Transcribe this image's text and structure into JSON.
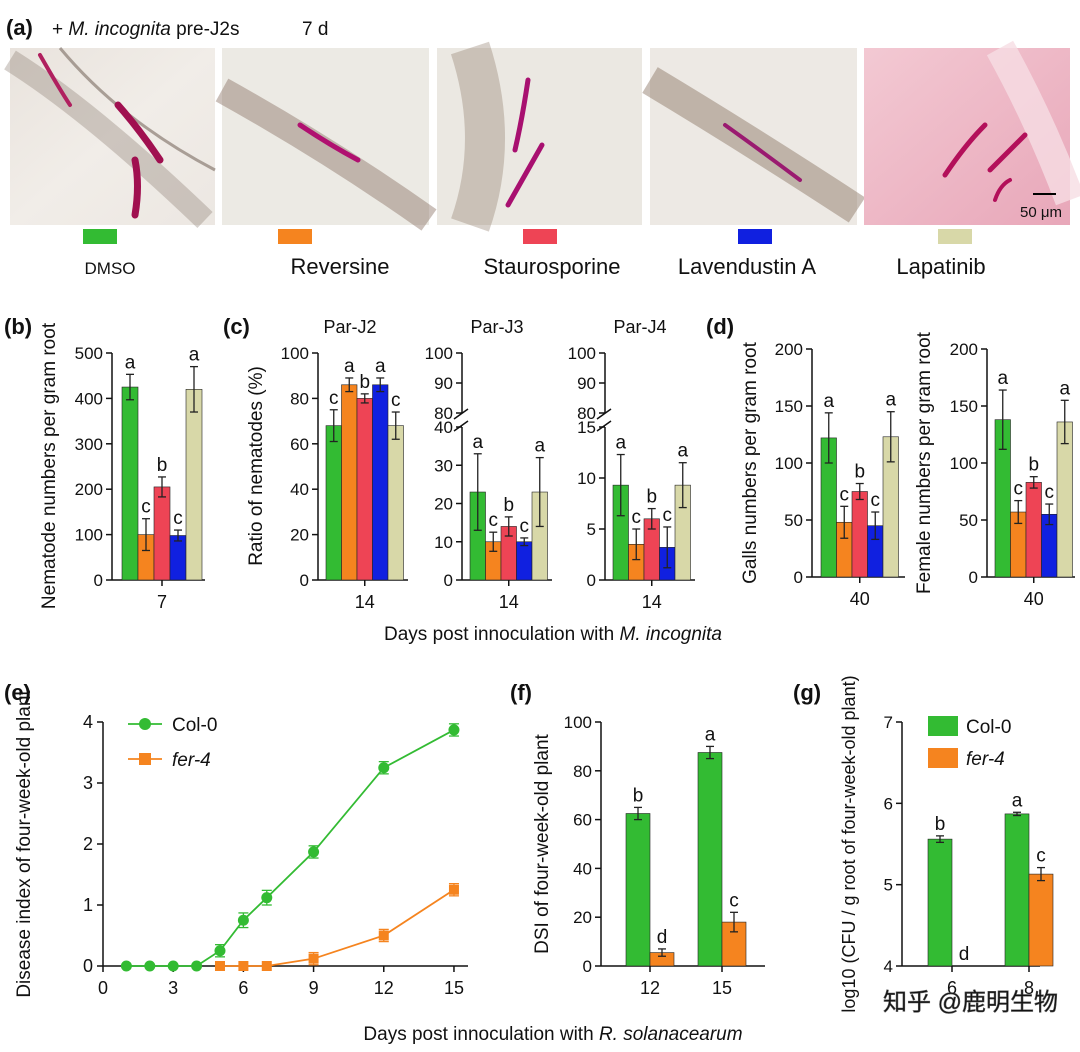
{
  "header": {
    "label": "(a)",
    "treatment_prefix": "+ ",
    "treatment_species": "M. incognita",
    "treatment_suffix": " pre-J2s",
    "timepoint": "7 d"
  },
  "scale_bar": "50 μm",
  "watermark": "知乎 @鹿明生物",
  "colors": {
    "DMSO": "#33bb33",
    "Reversine": "#f5841f",
    "Staurosporine": "#ee4455",
    "Lavendustin A": "#1020e0",
    "Lapatinib": "#d8d8a8",
    "Col-0": "#33bb33",
    "fer-4": "#f5841f"
  },
  "legend_a": [
    "DMSO",
    "Reversine",
    "Staurosporine",
    "Lavendustin A",
    "Lapatinib"
  ],
  "chart_data": [
    {
      "panel": "(b)",
      "type": "bar",
      "ylabel": "Nematode numbers per gram root",
      "categories": [
        "7"
      ],
      "ylim": [
        0,
        500
      ],
      "yticks": [
        0,
        100,
        200,
        300,
        400,
        500
      ],
      "series": [
        {
          "name": "DMSO",
          "values": [
            425
          ],
          "err": [
            28
          ],
          "letters": [
            "a"
          ]
        },
        {
          "name": "Reversine",
          "values": [
            100
          ],
          "err": [
            35
          ],
          "letters": [
            "c"
          ]
        },
        {
          "name": "Staurosporine",
          "values": [
            205
          ],
          "err": [
            22
          ],
          "letters": [
            "b"
          ]
        },
        {
          "name": "Lavendustin A",
          "values": [
            98
          ],
          "err": [
            12
          ],
          "letters": [
            "c"
          ]
        },
        {
          "name": "Lapatinib",
          "values": [
            420
          ],
          "err": [
            50
          ],
          "letters": [
            "a"
          ]
        }
      ]
    },
    {
      "panel": "(c)",
      "type": "bar",
      "title": "Par-J2",
      "ylabel": "Ratio of nematodes (%)",
      "categories": [
        "14"
      ],
      "ylim": [
        0,
        100
      ],
      "yticks": [
        0,
        20,
        40,
        60,
        80,
        100
      ],
      "series": [
        {
          "name": "DMSO",
          "values": [
            68
          ],
          "err": [
            7
          ],
          "letters": [
            "c"
          ]
        },
        {
          "name": "Reversine",
          "values": [
            86
          ],
          "err": [
            3
          ],
          "letters": [
            "a"
          ]
        },
        {
          "name": "Staurosporine",
          "values": [
            80
          ],
          "err": [
            2
          ],
          "letters": [
            "b"
          ]
        },
        {
          "name": "Lavendustin A",
          "values": [
            86
          ],
          "err": [
            3
          ],
          "letters": [
            "a"
          ]
        },
        {
          "name": "Lapatinib",
          "values": [
            68
          ],
          "err": [
            6
          ],
          "letters": [
            "c"
          ]
        }
      ]
    },
    {
      "panel": "(c)",
      "type": "bar",
      "title": "Par-J3",
      "categories": [
        "14"
      ],
      "ylim": [
        0,
        40
      ],
      "yticks": [
        0,
        10,
        20,
        30,
        40
      ],
      "upper_ticks": [
        80,
        90,
        100
      ],
      "series": [
        {
          "name": "DMSO",
          "values": [
            23
          ],
          "err": [
            10
          ],
          "letters": [
            "a"
          ]
        },
        {
          "name": "Reversine",
          "values": [
            10
          ],
          "err": [
            2.5
          ],
          "letters": [
            "c"
          ]
        },
        {
          "name": "Staurosporine",
          "values": [
            14
          ],
          "err": [
            2.5
          ],
          "letters": [
            "b"
          ]
        },
        {
          "name": "Lavendustin A",
          "values": [
            10
          ],
          "err": [
            1
          ],
          "letters": [
            "c"
          ]
        },
        {
          "name": "Lapatinib",
          "values": [
            23
          ],
          "err": [
            9
          ],
          "letters": [
            "a"
          ]
        }
      ]
    },
    {
      "panel": "(c)",
      "type": "bar",
      "title": "Par-J4",
      "categories": [
        "14"
      ],
      "ylim": [
        0,
        15
      ],
      "yticks": [
        0,
        5,
        10,
        15
      ],
      "upper_ticks": [
        80,
        90,
        100
      ],
      "series": [
        {
          "name": "DMSO",
          "values": [
            9.3
          ],
          "err": [
            3
          ],
          "letters": [
            "a"
          ]
        },
        {
          "name": "Reversine",
          "values": [
            3.5
          ],
          "err": [
            1.5
          ],
          "letters": [
            "c"
          ]
        },
        {
          "name": "Staurosporine",
          "values": [
            6
          ],
          "err": [
            1
          ],
          "letters": [
            "b"
          ]
        },
        {
          "name": "Lavendustin A",
          "values": [
            3.2
          ],
          "err": [
            2
          ],
          "letters": [
            "c"
          ]
        },
        {
          "name": "Lapatinib",
          "values": [
            9.3
          ],
          "err": [
            2.2
          ],
          "letters": [
            "a"
          ]
        }
      ]
    },
    {
      "panel": "(d)",
      "type": "bar",
      "ylabel": "Galls numbers per gram root",
      "categories": [
        "40"
      ],
      "ylim": [
        0,
        200
      ],
      "yticks": [
        0,
        50,
        100,
        150,
        200
      ],
      "series": [
        {
          "name": "DMSO",
          "values": [
            122
          ],
          "err": [
            22
          ],
          "letters": [
            "a"
          ]
        },
        {
          "name": "Reversine",
          "values": [
            48
          ],
          "err": [
            14
          ],
          "letters": [
            "c"
          ]
        },
        {
          "name": "Staurosporine",
          "values": [
            75
          ],
          "err": [
            7
          ],
          "letters": [
            "b"
          ]
        },
        {
          "name": "Lavendustin A",
          "values": [
            45
          ],
          "err": [
            12
          ],
          "letters": [
            "c"
          ]
        },
        {
          "name": "Lapatinib",
          "values": [
            123
          ],
          "err": [
            22
          ],
          "letters": [
            "a"
          ]
        }
      ]
    },
    {
      "panel": "",
      "type": "bar",
      "ylabel": "Female numbers per gram root",
      "categories": [
        "40"
      ],
      "ylim": [
        0,
        200
      ],
      "yticks": [
        0,
        50,
        100,
        150,
        200
      ],
      "series": [
        {
          "name": "DMSO",
          "values": [
            138
          ],
          "err": [
            26
          ],
          "letters": [
            "a"
          ]
        },
        {
          "name": "Reversine",
          "values": [
            57
          ],
          "err": [
            10
          ],
          "letters": [
            "c"
          ]
        },
        {
          "name": "Staurosporine",
          "values": [
            83
          ],
          "err": [
            5
          ],
          "letters": [
            "b"
          ]
        },
        {
          "name": "Lavendustin A",
          "values": [
            55
          ],
          "err": [
            9
          ],
          "letters": [
            "c"
          ]
        },
        {
          "name": "Lapatinib",
          "values": [
            136
          ],
          "err": [
            19
          ],
          "letters": [
            "a"
          ]
        }
      ]
    },
    {
      "panel": "(e)",
      "type": "line",
      "ylabel": "Disease index of four-week-old plant",
      "x": [
        1,
        2,
        3,
        4,
        5,
        6,
        7,
        9,
        12,
        15
      ],
      "xticks": [
        0,
        3,
        6,
        9,
        12,
        15
      ],
      "xlim": [
        0,
        15.6
      ],
      "ylim": [
        0,
        4
      ],
      "yticks": [
        0,
        1,
        2,
        3,
        4
      ],
      "legend": "top-left",
      "series": [
        {
          "name": "Col-0",
          "marker": "circle",
          "values": [
            0,
            0,
            0,
            0,
            0.25,
            0.75,
            1.12,
            1.87,
            3.25,
            3.87
          ],
          "err": [
            0,
            0,
            0,
            0,
            0.1,
            0.12,
            0.12,
            0.1,
            0.1,
            0.1
          ]
        },
        {
          "name": "fer-4",
          "marker": "square",
          "values": [
            null,
            null,
            null,
            null,
            0,
            0,
            0,
            0.12,
            0.5,
            1.25
          ],
          "err": [
            0,
            0,
            0,
            0,
            0,
            0,
            0,
            0.1,
            0.1,
            0.1
          ]
        }
      ]
    },
    {
      "panel": "(f)",
      "type": "bar",
      "ylabel": "DSI of four-week-old plant",
      "categories": [
        "12",
        "15"
      ],
      "ylim": [
        0,
        100
      ],
      "yticks": [
        0,
        20,
        40,
        60,
        80,
        100
      ],
      "series": [
        {
          "name": "Col-0",
          "values": [
            62.5,
            87.5
          ],
          "err": [
            2.5,
            2.5
          ],
          "letters": [
            "b",
            "a"
          ]
        },
        {
          "name": "fer-4",
          "values": [
            5.5,
            18
          ],
          "err": [
            1.5,
            4
          ],
          "letters": [
            "d",
            "c"
          ]
        }
      ]
    },
    {
      "panel": "(g)",
      "type": "bar",
      "ylabel": "log10 (CFU / g root of four-week-old plant)",
      "categories": [
        "6",
        "8"
      ],
      "ylim": [
        4,
        7
      ],
      "yticks": [
        4,
        5,
        6,
        7
      ],
      "legend": "top-left",
      "series": [
        {
          "name": "Col-0",
          "values": [
            5.56,
            5.87
          ],
          "err": [
            0.04,
            0.02
          ],
          "letters": [
            "b",
            "a"
          ]
        },
        {
          "name": "fer-4",
          "values": [
            null,
            5.13
          ],
          "err": [
            0,
            0.08
          ],
          "letters": [
            "d",
            "c"
          ]
        }
      ]
    }
  ],
  "axis_labels": {
    "bcd_prefix": "Days post innoculation with ",
    "bcd_species": "M. incognita",
    "efg_prefix": "Days post innoculation with ",
    "efg_species": "R. solanacearum"
  }
}
